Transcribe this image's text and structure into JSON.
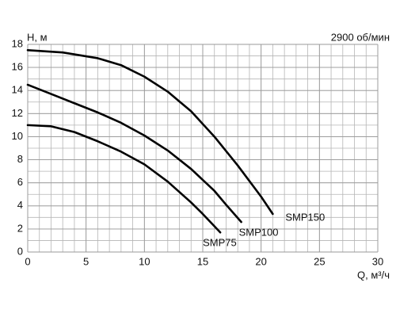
{
  "chart_data": {
    "type": "line",
    "y_label": "H, м",
    "x_label": "Q, м³/ч",
    "annotation": "2900 об/мин",
    "xlim": [
      0,
      30
    ],
    "ylim": [
      0,
      18
    ],
    "xticks": [
      0,
      5,
      10,
      15,
      20,
      25,
      30
    ],
    "yticks": [
      0,
      2,
      4,
      6,
      8,
      10,
      12,
      14,
      16,
      18
    ],
    "grid": true,
    "minor_grid": 1,
    "series": [
      {
        "name": "SMP75",
        "color": "#000000",
        "x": [
          0,
          2,
          4,
          6,
          8,
          10,
          12,
          14,
          15,
          16.5
        ],
        "values": [
          11,
          10.9,
          10.4,
          9.6,
          8.7,
          7.6,
          6.1,
          4.3,
          3.3,
          1.7
        ]
      },
      {
        "name": "SMP100",
        "color": "#000000",
        "x": [
          0,
          2,
          4,
          6,
          8,
          10,
          12,
          14,
          16,
          17,
          18.3
        ],
        "values": [
          14.5,
          13.7,
          12.9,
          12.1,
          11.2,
          10.1,
          8.8,
          7.2,
          5.3,
          4.1,
          2.6
        ]
      },
      {
        "name": "SMP150",
        "color": "#000000",
        "x": [
          0,
          3,
          6,
          8,
          10,
          12,
          14,
          16,
          18,
          20,
          21
        ],
        "values": [
          17.5,
          17.3,
          16.8,
          16.2,
          15.2,
          13.9,
          12.2,
          10.0,
          7.5,
          4.8,
          3.3
        ]
      }
    ]
  }
}
